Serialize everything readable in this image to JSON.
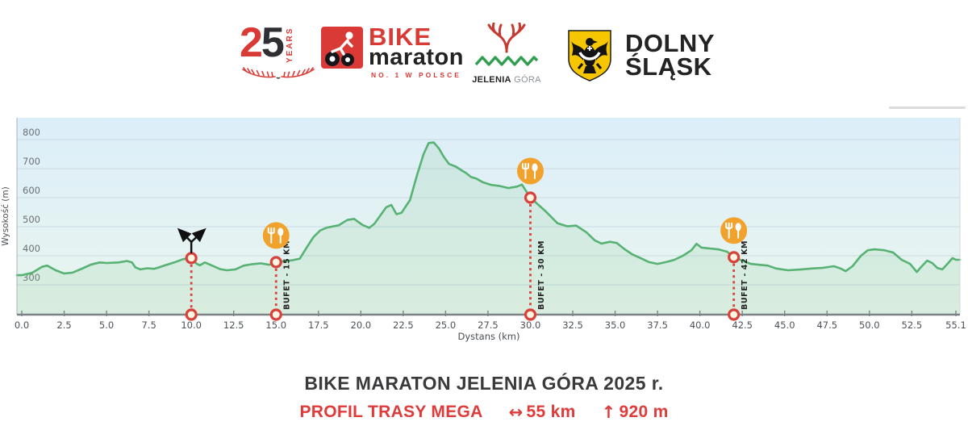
{
  "header": {
    "logo25": {
      "digit_red": "2",
      "digit_dark": "5",
      "years": "YEARS"
    },
    "bike": {
      "title": "BIKE",
      "subtitle": "maraton",
      "tagline": "NO. 1 W POLSCE"
    },
    "jelenia": {
      "name_bold": "JELENIA",
      "name_light": " GÓRA"
    },
    "dolny": {
      "line1": "DOLNY",
      "line2": "ŚLĄSK"
    }
  },
  "chart_data": {
    "type": "area",
    "xlabel": "Dystans  (km)",
    "ylabel": "Wysokość (m)",
    "xlim": [
      0,
      55.1
    ],
    "ylim": [
      200,
      875
    ],
    "grid": true,
    "x_tick_labels": [
      "0.0",
      "2.5",
      "5.0",
      "7.5",
      "10.0",
      "12.5",
      "15.0",
      "17.5",
      "20.0",
      "22.5",
      "25.0",
      "27.5",
      "30.0",
      "32.5",
      "35.0",
      "37.5",
      "40.0",
      "42.5",
      "45.0",
      "47.5",
      "50.0",
      "52.5",
      "55.1"
    ],
    "y_tick_labels": [
      "300",
      "400",
      "500",
      "600",
      "700",
      "800"
    ],
    "series": [
      {
        "name": "elevation_profile",
        "points": [
          [
            0,
            333
          ],
          [
            0.6,
            341
          ],
          [
            1.2,
            362
          ],
          [
            1.5,
            366
          ],
          [
            2,
            350
          ],
          [
            2.5,
            339
          ],
          [
            3,
            342
          ],
          [
            3.6,
            357
          ],
          [
            4.1,
            370
          ],
          [
            4.6,
            377
          ],
          [
            5,
            375
          ],
          [
            5.7,
            377
          ],
          [
            6.2,
            382
          ],
          [
            6.5,
            377
          ],
          [
            6.7,
            360
          ],
          [
            7,
            353
          ],
          [
            7.4,
            357
          ],
          [
            7.8,
            355
          ],
          [
            8.1,
            360
          ],
          [
            8.5,
            368
          ],
          [
            9,
            377
          ],
          [
            9.5,
            388
          ],
          [
            10,
            392
          ],
          [
            10.3,
            373
          ],
          [
            10.5,
            367
          ],
          [
            10.8,
            377
          ],
          [
            11.2,
            367
          ],
          [
            11.7,
            354
          ],
          [
            12.1,
            350
          ],
          [
            12.6,
            353
          ],
          [
            13.1,
            366
          ],
          [
            13.6,
            371
          ],
          [
            14.1,
            374
          ],
          [
            14.6,
            369
          ],
          [
            15,
            378
          ],
          [
            15.5,
            381
          ],
          [
            16,
            385
          ],
          [
            16.4,
            390
          ],
          [
            16.8,
            428
          ],
          [
            17.2,
            464
          ],
          [
            17.6,
            487
          ],
          [
            18,
            497
          ],
          [
            18.7,
            505
          ],
          [
            19.2,
            523
          ],
          [
            19.6,
            527
          ],
          [
            20.1,
            506
          ],
          [
            20.5,
            496
          ],
          [
            20.8,
            510
          ],
          [
            21.5,
            567
          ],
          [
            21.8,
            575
          ],
          [
            22.1,
            543
          ],
          [
            22.4,
            548
          ],
          [
            22.9,
            592
          ],
          [
            23.3,
            675
          ],
          [
            23.7,
            750
          ],
          [
            24,
            788
          ],
          [
            24.3,
            790
          ],
          [
            24.6,
            770
          ],
          [
            24.9,
            740
          ],
          [
            25.2,
            716
          ],
          [
            25.6,
            707
          ],
          [
            26,
            692
          ],
          [
            26.2,
            685
          ],
          [
            26.5,
            671
          ],
          [
            26.8,
            666
          ],
          [
            27.2,
            653
          ],
          [
            27.7,
            644
          ],
          [
            28.2,
            640
          ],
          [
            28.7,
            633
          ],
          [
            29.2,
            638
          ],
          [
            29.5,
            645
          ],
          [
            30,
            600
          ],
          [
            30.9,
            553
          ],
          [
            31.6,
            512
          ],
          [
            32.2,
            501
          ],
          [
            32.7,
            504
          ],
          [
            33.3,
            481
          ],
          [
            33.8,
            453
          ],
          [
            34.2,
            442
          ],
          [
            34.7,
            448
          ],
          [
            35.1,
            444
          ],
          [
            35.5,
            425
          ],
          [
            36,
            405
          ],
          [
            36.5,
            392
          ],
          [
            37,
            378
          ],
          [
            37.5,
            372
          ],
          [
            38,
            378
          ],
          [
            38.5,
            386
          ],
          [
            39,
            400
          ],
          [
            39.5,
            419
          ],
          [
            39.8,
            441
          ],
          [
            40.1,
            428
          ],
          [
            40.6,
            425
          ],
          [
            41.1,
            422
          ],
          [
            41.6,
            414
          ],
          [
            42,
            395
          ],
          [
            42.5,
            383
          ],
          [
            43,
            372
          ],
          [
            43.5,
            369
          ],
          [
            44,
            366
          ],
          [
            44.5,
            356
          ],
          [
            45.2,
            350
          ],
          [
            46,
            353
          ],
          [
            46.6,
            356
          ],
          [
            47.2,
            358
          ],
          [
            47.9,
            364
          ],
          [
            48.3,
            356
          ],
          [
            48.6,
            347
          ],
          [
            49,
            364
          ],
          [
            49.5,
            400
          ],
          [
            49.9,
            419
          ],
          [
            50.3,
            422
          ],
          [
            50.9,
            419
          ],
          [
            51.4,
            411
          ],
          [
            51.9,
            386
          ],
          [
            52.4,
            372
          ],
          [
            52.8,
            344
          ],
          [
            53,
            358
          ],
          [
            53.4,
            383
          ],
          [
            53.7,
            375
          ],
          [
            54,
            358
          ],
          [
            54.3,
            353
          ],
          [
            54.6,
            372
          ],
          [
            54.9,
            392
          ],
          [
            55.1,
            386
          ]
        ]
      }
    ],
    "markers": [
      {
        "km": 10,
        "elevation": 392,
        "type": "junction",
        "label": ""
      },
      {
        "km": 15,
        "elevation": 378,
        "type": "buffet",
        "label": "BUFET - 15 KM"
      },
      {
        "km": 30,
        "elevation": 600,
        "type": "buffet",
        "label": "BUFET - 30 KM"
      },
      {
        "km": 42,
        "elevation": 395,
        "type": "buffet",
        "label": "BUFET - 42 KM"
      }
    ],
    "colors": {
      "line": "#57b273",
      "fill": "rgba(140,200,152,0.18)",
      "bg_top": "#dceef9",
      "bg_bottom": "#e9f6ee",
      "grid": "#c9dae2",
      "axis": "#7d8287",
      "tick_text": "#4d5257",
      "ytick_text": "#6a7076",
      "marker_red": "#d8423a",
      "marker_fill": "#fcf5e3",
      "buffet_orange": "#f0a22c",
      "junction_black": "#101010"
    }
  },
  "footer": {
    "title": "BIKE MARATON JELENIA GÓRA 2025 r.",
    "subtitle": "PROFIL TRASY MEGA",
    "arrow_horizontal": "↔",
    "distance": "55 km",
    "arrow_up": "↑",
    "climb": "920 m"
  }
}
